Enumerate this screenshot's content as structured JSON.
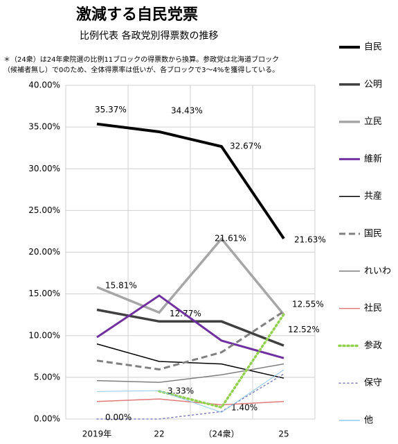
{
  "chart_data": {
    "type": "line",
    "title": "激減する自民党票",
    "subtitle": "比例代表 各政党別得票数の推移",
    "note": [
      "＊（24衆）は24年衆院選の比例11ブロックの得票数から換算。参政党は北海道ブロック",
      "（候補者無し）で0のため、全体得票率は低いが、各ブロックで3～4%を獲得している。"
    ],
    "categories": [
      "2019年",
      "22",
      "（24衆）",
      "25"
    ],
    "ylim": [
      0,
      40
    ],
    "yticks": [
      {
        "value": 0,
        "label": "0.00%"
      },
      {
        "value": 5,
        "label": "5.00%"
      },
      {
        "value": 10,
        "label": "10.00%"
      },
      {
        "value": 15,
        "label": "15.00%"
      },
      {
        "value": 20,
        "label": "20.00%"
      },
      {
        "value": 25,
        "label": "25.00%"
      },
      {
        "value": 30,
        "label": "30.00%"
      },
      {
        "value": 35,
        "label": "35.00%"
      },
      {
        "value": 40,
        "label": "40.00%"
      }
    ],
    "grid": true,
    "legend": "right",
    "series": [
      {
        "name": "自民",
        "color": "#000000",
        "width": 4,
        "style": "solid",
        "values": [
          35.37,
          34.43,
          32.67,
          21.63
        ],
        "value_labels": [
          "35.37%",
          "34.43%",
          "32.67%",
          "21.63%"
        ]
      },
      {
        "name": "公明",
        "color": "#404040",
        "width": 3.5,
        "style": "solid",
        "values": [
          13.1,
          11.7,
          11.7,
          8.8
        ]
      },
      {
        "name": "立民",
        "color": "#a6a6a6",
        "width": 3.5,
        "style": "solid",
        "values": [
          15.81,
          12.77,
          21.61,
          12.52
        ],
        "value_labels": [
          "15.81%",
          "12.77%",
          "21.61%",
          "12.52%"
        ]
      },
      {
        "name": "維新",
        "color": "#7030a0",
        "width": 3,
        "style": "solid",
        "values": [
          9.8,
          14.8,
          9.4,
          7.3
        ]
      },
      {
        "name": "共産",
        "color": "#000000",
        "width": 1.5,
        "style": "solid",
        "values": [
          9.0,
          6.9,
          6.6,
          4.9
        ]
      },
      {
        "name": "国民",
        "color": "#808080",
        "width": 3,
        "style": "dashed",
        "values": [
          7.0,
          5.95,
          8.0,
          12.9
        ]
      },
      {
        "name": "れいわ",
        "color": "#7f7f7f",
        "width": 1.5,
        "style": "solid",
        "values": [
          4.6,
          4.4,
          5.3,
          6.6
        ]
      },
      {
        "name": "社民",
        "color": "#e07a7a",
        "width": 1.5,
        "style": "solid",
        "values": [
          2.1,
          2.4,
          1.7,
          2.1
        ]
      },
      {
        "name": "参政",
        "color": "#92d050",
        "width": 3.5,
        "style": "dotted",
        "values": [
          null,
          3.33,
          1.4,
          12.55
        ],
        "value_labels": [
          null,
          "3.33%",
          "1.40%",
          "12.55%"
        ]
      },
      {
        "name": "保守",
        "color": "#8080c0",
        "width": 1.5,
        "style": "dotted",
        "values": [
          0,
          0,
          0.9,
          5.4
        ],
        "value_labels": [
          "0.00%",
          null,
          null,
          null
        ]
      },
      {
        "name": "他",
        "color": "#8ec9e8",
        "width": 1,
        "style": "solid",
        "values": [
          3.3,
          3.4,
          0.8,
          5.9
        ]
      }
    ]
  }
}
